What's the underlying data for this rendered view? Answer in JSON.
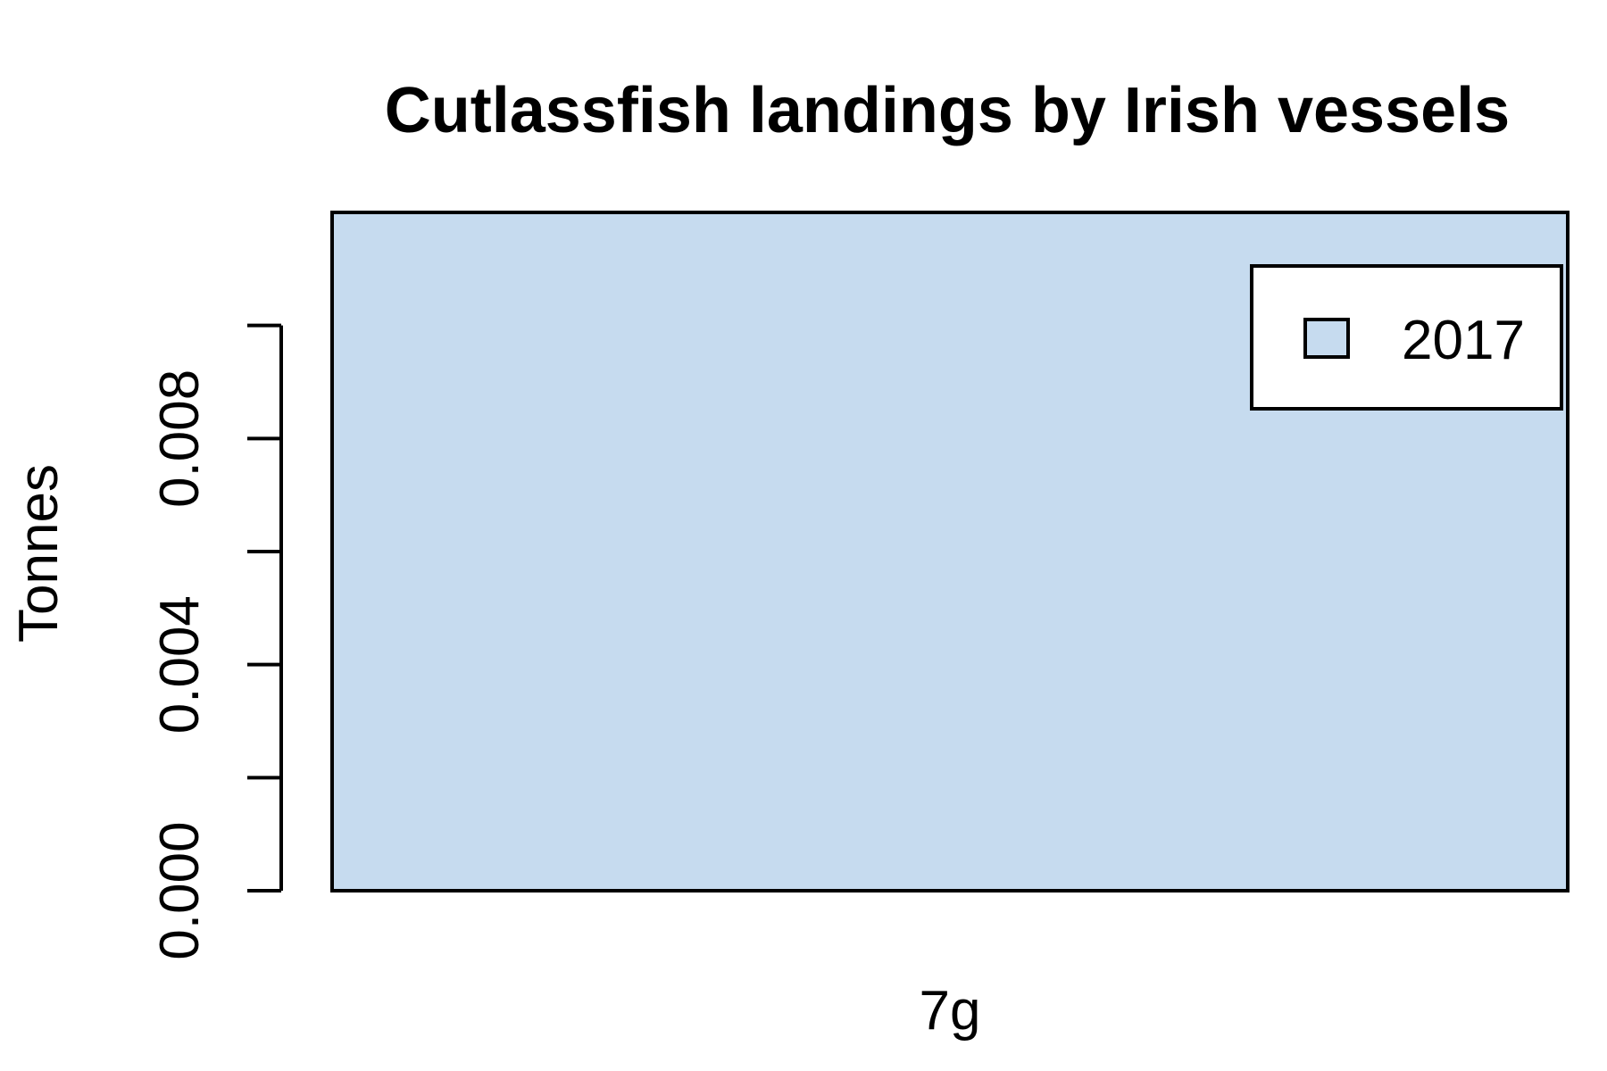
{
  "chart_data": {
    "type": "bar",
    "title": "Cutlassfish landings by Irish vessels",
    "xlabel": "",
    "ylabel": "Tonnes",
    "categories": [
      "7g"
    ],
    "series": [
      {
        "name": "2017",
        "values": [
          0.012
        ],
        "color": "#c6dbef"
      }
    ],
    "ylim": [
      0,
      0.012
    ],
    "yticks": [
      0.0,
      0.002,
      0.004,
      0.006,
      0.008,
      0.01
    ],
    "ytick_labels": [
      "0.000",
      "",
      "0.004",
      "",
      "0.008",
      ""
    ],
    "grid": false,
    "legend_position": "top-right"
  }
}
